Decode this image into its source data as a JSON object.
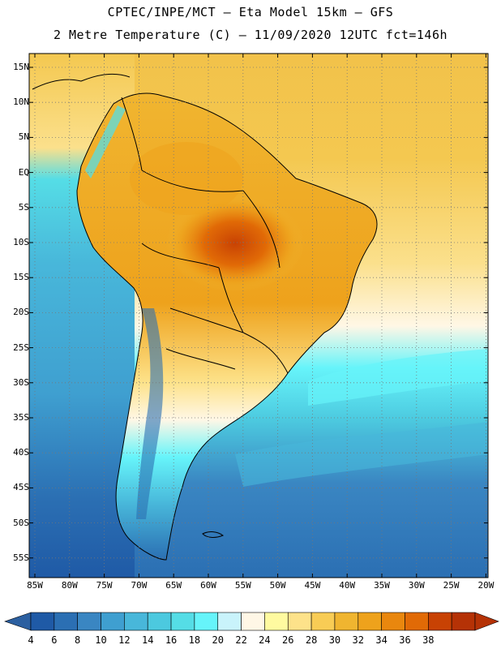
{
  "header": {
    "title_line1": "CPTEC/INPE/MCT –  Eta Model 15km – GFS",
    "title_line2": "2 Metre Temperature (C) – 11/09/2020 12UTC fct=146h"
  },
  "map": {
    "region": "South America",
    "lat_ticks": [
      "15N",
      "10N",
      "5N",
      "EQ",
      "5S",
      "10S",
      "15S",
      "20S",
      "25S",
      "30S",
      "35S",
      "40S",
      "45S",
      "50S",
      "55S"
    ],
    "lon_ticks": [
      "85W",
      "80W",
      "75W",
      "70W",
      "65W",
      "60W",
      "55W",
      "50W",
      "45W",
      "40W",
      "35W",
      "30W",
      "25W",
      "20W"
    ],
    "gridlines": "dotted"
  },
  "colorbar": {
    "labels": [
      "4",
      "6",
      "8",
      "10",
      "12",
      "14",
      "16",
      "18",
      "20",
      "22",
      "24",
      "26",
      "28",
      "30",
      "32",
      "34",
      "36",
      "38"
    ],
    "colors": [
      "#1f5aa6",
      "#2b6fb3",
      "#3a86c2",
      "#3f9fd0",
      "#48b7da",
      "#4cc9df",
      "#55dde6",
      "#66f4fa",
      "#c9f3fb",
      "#fff7e6",
      "#fffaa0",
      "#fde28a",
      "#f8cc55",
      "#f0b530",
      "#eea21c",
      "#e9870e",
      "#e16a06",
      "#c84204",
      "#b53206"
    ],
    "low_color": "#2b5fa0",
    "high_color": "#b53206"
  }
}
